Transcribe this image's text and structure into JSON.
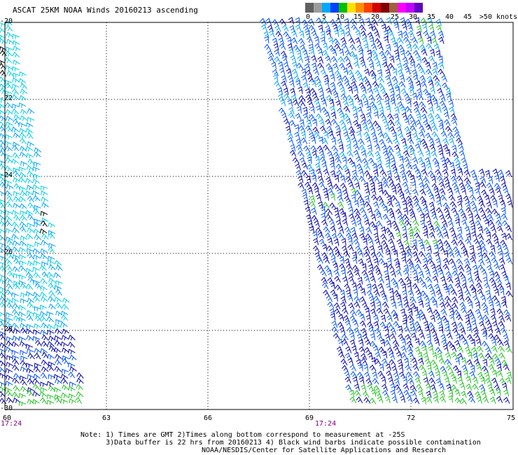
{
  "title": "ASCAT 25KM NOAA Winds 20160213 ascending",
  "legend": {
    "colors": [
      "#606060",
      "#9c9c9c",
      "#00a8ff",
      "#0040ff",
      "#00c000",
      "#ffe000",
      "#ff9000",
      "#ff4000",
      "#d00000",
      "#800000",
      "#a06040",
      "#ff00ff",
      "#c000ff",
      "#6000c0"
    ],
    "labels": [
      "0",
      "5",
      "10",
      "15",
      "20",
      "25",
      "30",
      "35",
      "40",
      "45",
      ">50 knots"
    ]
  },
  "map": {
    "lat_ticks": [
      "-20",
      "-22",
      "-24",
      "-26",
      "-28",
      "-30"
    ],
    "lon_ticks": [
      "60",
      "63",
      "66",
      "69",
      "72",
      "75"
    ],
    "time_labels": [
      "17:24",
      "17:24"
    ],
    "barb_colors": {
      "black": "#000000",
      "cyan": "#00d0e0",
      "skyblue": "#00a0ff",
      "blue": "#0050ff",
      "navy": "#0000b0",
      "green": "#20c020"
    }
  },
  "notes": {
    "line1": "Note: 1) Times are GMT 2)Times along bottom correspond to measurement at -25S",
    "line2": "      3)Data buffer is 22 hrs from 20160213 4) Black wind barbs indicate possible contamination",
    "credit": "NOAA/NESDIS/Center for Satellite Applications and Research"
  }
}
